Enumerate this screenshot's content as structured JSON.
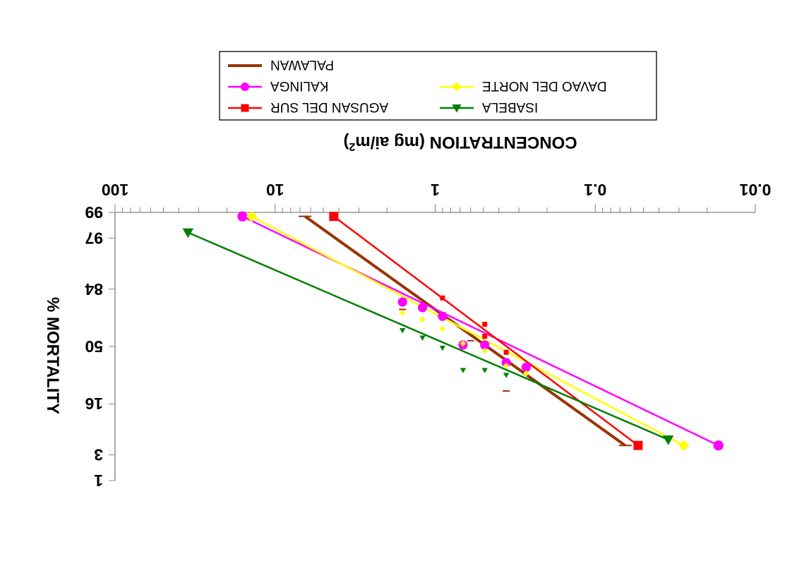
{
  "chart_data": {
    "type": "scatter",
    "orientation": "rotated-180",
    "xlabel": "CONCENTRATION (mg ai/m2)",
    "xlabel_main": "CONCENTRATION (mg ai/m",
    "xlabel_sup": "2",
    "xlabel_tail": ")",
    "ylabel": "% MORTALITY",
    "xscale": "log",
    "xlim": [
      0.01,
      100
    ],
    "x_ticks": [
      {
        "value": 0.01,
        "label": "0.01"
      },
      {
        "value": 0.1,
        "label": "0.1"
      },
      {
        "value": 1,
        "label": "1"
      },
      {
        "value": 10,
        "label": "10"
      },
      {
        "value": 100,
        "label": "100"
      }
    ],
    "yscale": "probit",
    "ylim": [
      1,
      99
    ],
    "y_ticks": [
      {
        "value": 1,
        "label": "1"
      },
      {
        "value": 3,
        "label": "3"
      },
      {
        "value": 16,
        "label": "16"
      },
      {
        "value": 50,
        "label": "50"
      },
      {
        "value": 84,
        "label": "84"
      },
      {
        "value": 97,
        "label": "97"
      },
      {
        "value": 99,
        "label": "99"
      }
    ],
    "grid": false,
    "legend_position": "top",
    "series": [
      {
        "name": "PALAWAN",
        "color": "#993300",
        "marker": "dash",
        "points": [
          [
            0.36,
            22
          ],
          [
            0.9,
            72
          ],
          [
            1.2,
            76
          ],
          [
            1.6,
            74
          ],
          [
            0.6,
            54
          ]
        ],
        "fit": [
          [
            0.065,
            4.3
          ],
          [
            6.5,
            98.8
          ]
        ]
      },
      {
        "name": "KALINGA",
        "color": "#ff00ff",
        "marker": "circle",
        "points": [
          [
            0.27,
            36
          ],
          [
            0.36,
            39
          ],
          [
            0.49,
            51
          ],
          [
            0.67,
            51
          ],
          [
            0.9,
            70
          ],
          [
            1.2,
            75
          ],
          [
            1.6,
            78
          ]
        ],
        "fit": [
          [
            0.017,
            4.3
          ],
          [
            16,
            98.8
          ]
        ]
      },
      {
        "name": "DAVAO DEL NORTE",
        "color": "#ffff00",
        "marker": "diamond",
        "points": [
          [
            0.27,
            32
          ],
          [
            0.36,
            37
          ],
          [
            0.49,
            47
          ],
          [
            0.67,
            52
          ],
          [
            0.9,
            62
          ],
          [
            1.2,
            68
          ],
          [
            1.6,
            72
          ]
        ],
        "fit": [
          [
            0.028,
            4.3
          ],
          [
            14,
            98.8
          ]
        ]
      },
      {
        "name": "AGUSAN DEL SUR",
        "color": "#ff0000",
        "marker": "square",
        "points": [
          [
            0.36,
            46
          ],
          [
            0.49,
            57
          ],
          [
            0.49,
            65
          ],
          [
            0.9,
            80
          ]
        ],
        "fit": [
          [
            0.054,
            4.3
          ],
          [
            4.3,
            98.8
          ]
        ]
      },
      {
        "name": "ISABELA",
        "color": "#008000",
        "marker": "triangle",
        "points": [
          [
            0.36,
            31
          ],
          [
            0.49,
            34
          ],
          [
            0.67,
            34
          ],
          [
            0.9,
            49
          ],
          [
            1.2,
            56
          ],
          [
            1.6,
            61
          ]
        ],
        "fit": [
          [
            0.035,
            5.3
          ],
          [
            35,
            97.6
          ]
        ]
      }
    ]
  }
}
